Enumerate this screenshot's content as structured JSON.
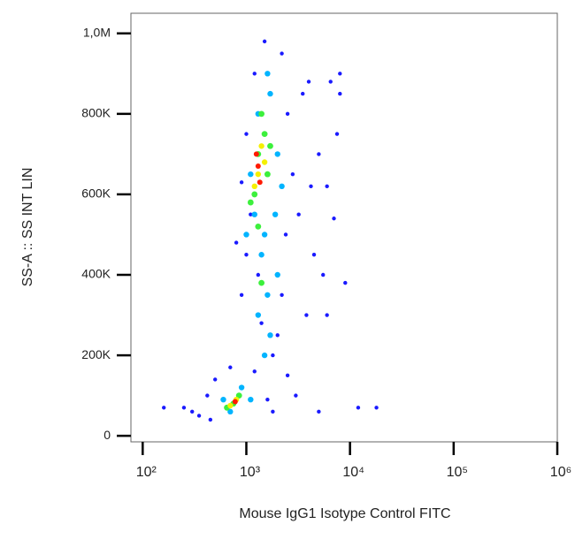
{
  "chart_data": {
    "type": "scatter",
    "x_label": "Mouse IgG1 Isotype Control FITC",
    "y_label": "SS-A :: SS INT LIN",
    "xscale": "log",
    "xlim": [
      77,
      1000000
    ],
    "xticks": [
      {
        "value": 100,
        "label": "10²"
      },
      {
        "value": 1000,
        "label": "10³"
      },
      {
        "value": 10000,
        "label": "10⁴"
      },
      {
        "value": 100000,
        "label": "10⁵"
      },
      {
        "value": 1000000,
        "label": "10⁶"
      }
    ],
    "ylim": [
      -15000,
      1050000
    ],
    "yticks": [
      0,
      {
        "value": 200000,
        "label": "200K"
      },
      {
        "value": 400000,
        "label": "400K"
      },
      {
        "value": 600000,
        "label": "600K"
      },
      {
        "value": 800000,
        "label": "800K"
      },
      {
        "value": 1000000,
        "label": "1,0M"
      }
    ],
    "series": [
      {
        "color": "#1a1aff",
        "x": [
          300,
          350,
          420,
          500,
          450,
          1600,
          1800,
          700,
          250,
          1200,
          900,
          1000,
          1100,
          1000,
          1200,
          1500,
          2200,
          2500,
          2800,
          2400,
          2200,
          2000,
          1800,
          1400,
          1300,
          800,
          900,
          3500,
          4000,
          5000,
          6000,
          7000,
          4500,
          5500,
          8000,
          9000,
          3800,
          7500,
          3200,
          6500,
          12000,
          18000,
          5000,
          3000,
          8000,
          4200,
          6000,
          160,
          2500
        ],
        "y": [
          60000,
          50000,
          100000,
          140000,
          40000,
          90000,
          60000,
          170000,
          70000,
          160000,
          350000,
          450000,
          550000,
          750000,
          900000,
          980000,
          950000,
          800000,
          650000,
          500000,
          350000,
          250000,
          200000,
          280000,
          400000,
          480000,
          630000,
          850000,
          880000,
          700000,
          620000,
          540000,
          450000,
          400000,
          900000,
          380000,
          300000,
          750000,
          550000,
          880000,
          70000,
          70000,
          60000,
          100000,
          850000,
          620000,
          300000,
          70000,
          150000
        ]
      },
      {
        "color": "#00b4ff",
        "x": [
          600,
          900,
          700,
          1100,
          1300,
          1600,
          1700,
          1400,
          1200,
          1100,
          1300,
          1700,
          1600,
          2000,
          1900,
          1500,
          2000,
          1500,
          1000,
          2200
        ],
        "y": [
          90000,
          120000,
          60000,
          90000,
          300000,
          350000,
          250000,
          450000,
          550000,
          650000,
          800000,
          850000,
          900000,
          700000,
          550000,
          500000,
          400000,
          200000,
          500000,
          620000
        ]
      },
      {
        "color": "#3cf03c",
        "x": [
          750,
          850,
          650,
          1200,
          1300,
          1500,
          1400,
          1600,
          1300,
          1700,
          1400,
          1100
        ],
        "y": [
          80000,
          100000,
          70000,
          600000,
          700000,
          750000,
          800000,
          650000,
          520000,
          720000,
          380000,
          580000
        ]
      },
      {
        "color": "#f5f000",
        "x": [
          800,
          700,
          1300,
          1400,
          1200,
          1500
        ],
        "y": [
          90000,
          75000,
          650000,
          720000,
          620000,
          680000
        ]
      },
      {
        "color": "#ff1a00",
        "x": [
          780,
          1300,
          1350,
          1250
        ],
        "y": [
          85000,
          670000,
          630000,
          700000
        ]
      }
    ]
  }
}
